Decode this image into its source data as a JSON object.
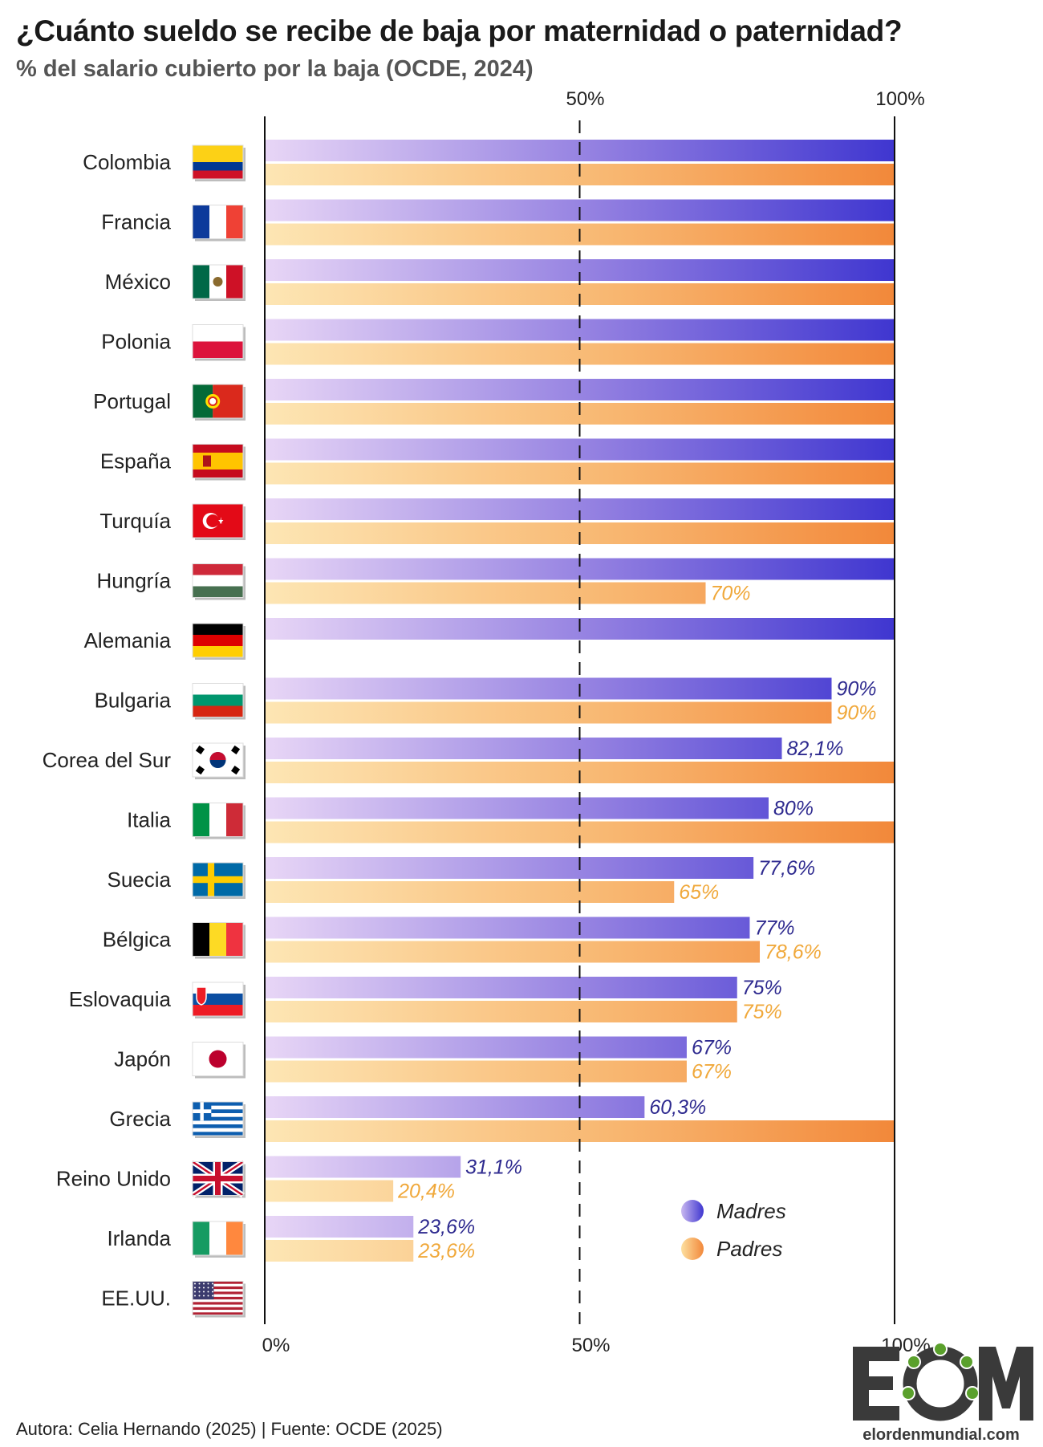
{
  "title": "¿Cuánto sueldo se recibe de baja por maternidad o paternidad?",
  "subtitle": "% del salario cubierto por la baja (OCDE, 2024)",
  "footer": "Autora: Celia Hernando (2025) | Fuente: OCDE (2025)",
  "logo": {
    "letters": "EOM",
    "site": "elordenmundial.com"
  },
  "colors": {
    "madres_start": "#e8d6f6",
    "madres_end": "#3f36d0",
    "padres_start": "#fde6b4",
    "padres_end": "#f2883a",
    "madres_label": "#2e2a8f",
    "padres_label": "#f0a83a"
  },
  "chart_data": {
    "type": "bar",
    "orientation": "horizontal",
    "xlim": [
      0,
      100
    ],
    "top_ticks": [
      "50%",
      "100%"
    ],
    "bottom_ticks": [
      "0%",
      "50%",
      "100%"
    ],
    "reference_line": 50,
    "legend_position": "bottom-right",
    "categories": [
      "Colombia",
      "Francia",
      "México",
      "Polonia",
      "Portugal",
      "España",
      "Turquía",
      "Hungría",
      "Alemania",
      "Bulgaria",
      "Corea del Sur",
      "Italia",
      "Suecia",
      "Bélgica",
      "Eslovaquia",
      "Japón",
      "Grecia",
      "Reino Unido",
      "Irlanda",
      "EE.UU."
    ],
    "series": [
      {
        "name": "Madres",
        "values": [
          100,
          100,
          100,
          100,
          100,
          100,
          100,
          100,
          100,
          90,
          82.1,
          80,
          77.6,
          77,
          75,
          67,
          60.3,
          31.1,
          23.6,
          null
        ],
        "labels": [
          "",
          "",
          "",
          "",
          "",
          "",
          "",
          "",
          "",
          "90%",
          "82,1%",
          "80%",
          "77,6%",
          "77%",
          "75%",
          "67%",
          "60,3%",
          "31,1%",
          "23,6%",
          ""
        ]
      },
      {
        "name": "Padres",
        "values": [
          100,
          100,
          100,
          100,
          100,
          100,
          100,
          70,
          null,
          90,
          100,
          100,
          65,
          78.6,
          75,
          67,
          100,
          20.4,
          23.6,
          null
        ],
        "labels": [
          "",
          "",
          "",
          "",
          "",
          "",
          "",
          "70%",
          "",
          "90%",
          "",
          "",
          "65%",
          "78,6%",
          "75%",
          "67%",
          "",
          "20,4%",
          "23,6%",
          ""
        ]
      }
    ],
    "flags": [
      "colombia-flag",
      "france-flag",
      "mexico-flag",
      "poland-flag",
      "portugal-flag",
      "spain-flag",
      "turkey-flag",
      "hungary-flag",
      "germany-flag",
      "bulgaria-flag",
      "south-korea-flag",
      "italy-flag",
      "sweden-flag",
      "belgium-flag",
      "slovakia-flag",
      "japan-flag",
      "greece-flag",
      "uk-flag",
      "ireland-flag",
      "usa-flag"
    ]
  }
}
